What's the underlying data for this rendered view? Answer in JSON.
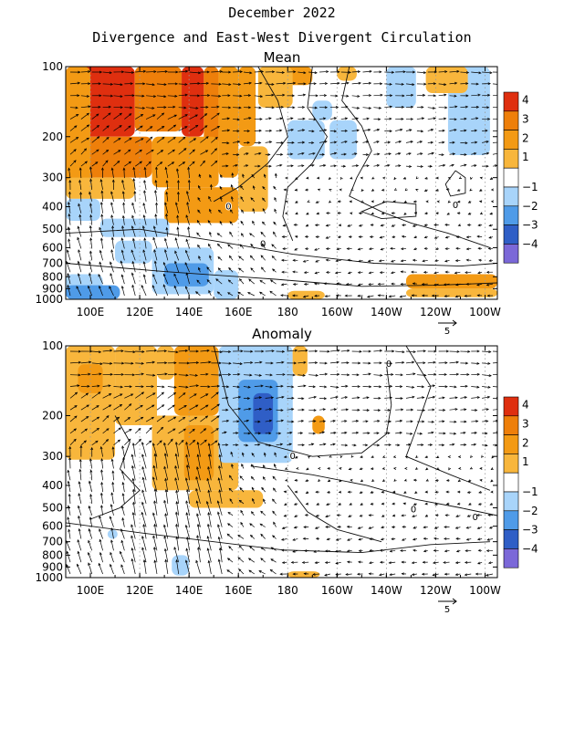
{
  "title_line1": "December 2022",
  "title_line2": "Divergence and East-West Divergent Circulation",
  "colors": {
    "-4": "#7b68d8",
    "-3": "#2f5ec6",
    "-2": "#4f9be8",
    "-1": "#a8d4fa",
    "1": "#f8b63c",
    "2": "#f39a14",
    "3": "#ee7f0a",
    "4": "#df2f0f"
  },
  "chart_data": [
    {
      "type": "heatmap",
      "title": "Mean",
      "x_axis": {
        "labels": [
          "100E",
          "120E",
          "140E",
          "160E",
          "180",
          "160W",
          "140W",
          "120W",
          "100W"
        ],
        "values": [
          100,
          120,
          140,
          160,
          180,
          200,
          220,
          240,
          260
        ],
        "range": [
          90,
          265
        ]
      },
      "y_axis": {
        "labels": [
          "100",
          "200",
          "300",
          "400",
          "500",
          "600",
          "700",
          "800",
          "900",
          "1000"
        ],
        "values": [
          100,
          200,
          300,
          400,
          500,
          600,
          700,
          800,
          900,
          1000
        ],
        "range": [
          100,
          1000
        ],
        "scale": "log-pressure"
      },
      "colorbar_levels": [
        -4,
        -3,
        -2,
        -1,
        1,
        2,
        3,
        4
      ],
      "colorbar_labels": [
        "4",
        "3",
        "2",
        "1",
        "−1",
        "−2",
        "−3",
        "−4"
      ],
      "contour_label": "0",
      "vector_reference": "5",
      "regions": [
        {
          "lon": [
            90,
            118
          ],
          "p": [
            100,
            200
          ],
          "v": 4
        },
        {
          "lon": [
            137,
            146
          ],
          "p": [
            100,
            200
          ],
          "v": 4
        },
        {
          "lon": [
            118,
            137
          ],
          "p": [
            100,
            190
          ],
          "v": 3
        },
        {
          "lon": [
            146,
            152
          ],
          "p": [
            100,
            230
          ],
          "v": 3
        },
        {
          "lon": [
            90,
            125
          ],
          "p": [
            200,
            300
          ],
          "v": 3
        },
        {
          "lon": [
            90,
            100
          ],
          "p": [
            100,
            330
          ],
          "v": 2
        },
        {
          "lon": [
            125,
            152
          ],
          "p": [
            200,
            330
          ],
          "v": 2
        },
        {
          "lon": [
            152,
            160
          ],
          "p": [
            100,
            300
          ],
          "v": 2
        },
        {
          "lon": [
            160,
            167
          ],
          "p": [
            100,
            220
          ],
          "v": 2
        },
        {
          "lon": [
            175,
            190
          ],
          "p": [
            100,
            120
          ],
          "v": 2
        },
        {
          "lon": [
            130,
            160
          ],
          "p": [
            330,
            470
          ],
          "v": 2
        },
        {
          "lon": [
            90,
            118
          ],
          "p": [
            300,
            370
          ],
          "v": 1
        },
        {
          "lon": [
            160,
            172
          ],
          "p": [
            220,
            420
          ],
          "v": 1
        },
        {
          "lon": [
            168,
            182
          ],
          "p": [
            100,
            150
          ],
          "v": 1
        },
        {
          "lon": [
            90,
            104
          ],
          "p": [
            370,
            460
          ],
          "v": -1
        },
        {
          "lon": [
            104,
            132
          ],
          "p": [
            450,
            540
          ],
          "v": -1
        },
        {
          "lon": [
            110,
            125
          ],
          "p": [
            560,
            700
          ],
          "v": -1
        },
        {
          "lon": [
            125,
            150
          ],
          "p": [
            600,
            950
          ],
          "v": -1
        },
        {
          "lon": [
            150,
            160
          ],
          "p": [
            750,
            1000
          ],
          "v": -1
        },
        {
          "lon": [
            90,
            105
          ],
          "p": [
            780,
            1000
          ],
          "v": -1
        },
        {
          "lon": [
            180,
            195
          ],
          "p": [
            170,
            250
          ],
          "v": -1
        },
        {
          "lon": [
            197,
            208
          ],
          "p": [
            170,
            250
          ],
          "v": -1
        },
        {
          "lon": [
            190,
            198
          ],
          "p": [
            140,
            170
          ],
          "v": -1
        },
        {
          "lon": [
            220,
            232
          ],
          "p": [
            100,
            150
          ],
          "v": -1
        },
        {
          "lon": [
            245,
            262
          ],
          "p": [
            100,
            240
          ],
          "v": -1
        },
        {
          "lon": [
            130,
            148
          ],
          "p": [
            700,
            880
          ],
          "v": -2
        },
        {
          "lon": [
            90,
            112
          ],
          "p": [
            870,
            1000
          ],
          "v": -2
        },
        {
          "lon": [
            228,
            265
          ],
          "p": [
            780,
            900
          ],
          "v": 2
        },
        {
          "lon": [
            228,
            265
          ],
          "p": [
            900,
            980
          ],
          "v": 1
        },
        {
          "lon": [
            180,
            195
          ],
          "p": [
            920,
            1000
          ],
          "v": 1
        },
        {
          "lon": [
            236,
            253
          ],
          "p": [
            100,
            130
          ],
          "v": 1
        },
        {
          "lon": [
            200,
            208
          ],
          "p": [
            100,
            115
          ],
          "v": 1
        }
      ]
    },
    {
      "type": "heatmap",
      "title": "Anomaly",
      "x_axis": {
        "labels": [
          "100E",
          "120E",
          "140E",
          "160E",
          "180",
          "160W",
          "140W",
          "120W",
          "100W"
        ],
        "values": [
          100,
          120,
          140,
          160,
          180,
          200,
          220,
          240,
          260
        ],
        "range": [
          90,
          265
        ]
      },
      "y_axis": {
        "labels": [
          "100",
          "200",
          "300",
          "400",
          "500",
          "600",
          "700",
          "800",
          "900",
          "1000"
        ],
        "values": [
          100,
          200,
          300,
          400,
          500,
          600,
          700,
          800,
          900,
          1000
        ],
        "range": [
          100,
          1000
        ],
        "scale": "log-pressure"
      },
      "colorbar_levels": [
        -4,
        -3,
        -2,
        -1,
        1,
        2,
        3,
        4
      ],
      "colorbar_labels": [
        "4",
        "3",
        "2",
        "1",
        "−1",
        "−2",
        "−3",
        "−4"
      ],
      "contour_label": "0",
      "vector_reference": "5",
      "regions": [
        {
          "lon": [
            90,
            110
          ],
          "p": [
            100,
            310
          ],
          "v": 1
        },
        {
          "lon": [
            110,
            127
          ],
          "p": [
            100,
            220
          ],
          "v": 1
        },
        {
          "lon": [
            127,
            134
          ],
          "p": [
            100,
            140
          ],
          "v": 1
        },
        {
          "lon": [
            134,
            152
          ],
          "p": [
            100,
            200
          ],
          "v": 2
        },
        {
          "lon": [
            125,
            160
          ],
          "p": [
            200,
            420
          ],
          "v": 1
        },
        {
          "lon": [
            140,
            170
          ],
          "p": [
            420,
            500
          ],
          "v": 1
        },
        {
          "lon": [
            138,
            150
          ],
          "p": [
            220,
            380
          ],
          "v": 2
        },
        {
          "lon": [
            95,
            105
          ],
          "p": [
            120,
            160
          ],
          "v": 2
        },
        {
          "lon": [
            190,
            195
          ],
          "p": [
            200,
            240
          ],
          "v": 2
        },
        {
          "lon": [
            180,
            193
          ],
          "p": [
            940,
            1000
          ],
          "v": 1
        },
        {
          "lon": [
            152,
            182
          ],
          "p": [
            100,
            320
          ],
          "v": -1
        },
        {
          "lon": [
            168,
            182
          ],
          "p": [
            100,
            300
          ],
          "v": -1
        },
        {
          "lon": [
            160,
            176
          ],
          "p": [
            140,
            260
          ],
          "v": -2
        },
        {
          "lon": [
            166,
            174
          ],
          "p": [
            160,
            240
          ],
          "v": -3
        },
        {
          "lon": [
            182,
            188
          ],
          "p": [
            100,
            135
          ],
          "v": 1
        },
        {
          "lon": [
            133,
            140
          ],
          "p": [
            800,
            980
          ],
          "v": -1
        },
        {
          "lon": [
            107,
            111
          ],
          "p": [
            620,
            680
          ],
          "v": -1
        }
      ]
    }
  ]
}
